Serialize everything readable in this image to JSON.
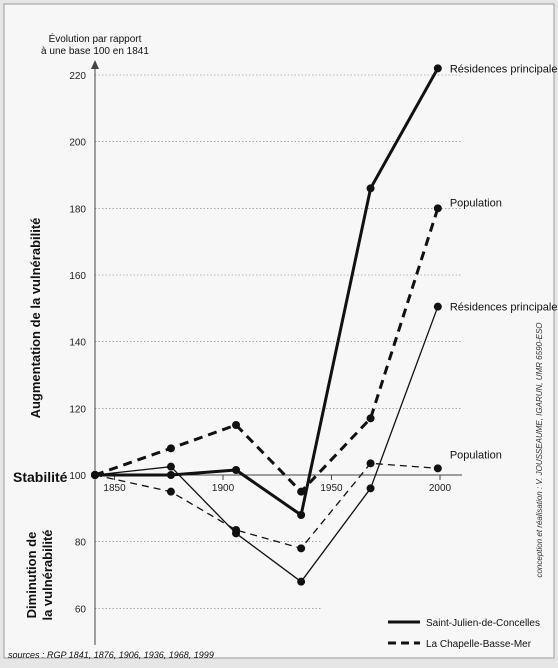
{
  "chart_data": {
    "type": "line",
    "y_axis_title": [
      "Évolution par rapport",
      "à une base 100 en 1841"
    ],
    "x_ticks": [
      1850,
      1900,
      1950,
      2000
    ],
    "y_ticks": [
      60,
      80,
      100,
      120,
      140,
      160,
      180,
      200,
      220
    ],
    "ylim": [
      60,
      230
    ],
    "xlim": [
      1841,
      2000
    ],
    "grid": true,
    "side_labels": {
      "augmentation": "Augmentation de la vulnérabilité",
      "stabilite": "Stabilité",
      "diminution": [
        "Diminution de",
        "la vulnérabilité"
      ]
    },
    "series": [
      {
        "name": "Résidences principales",
        "commune": "Saint-Julien-de-Concelles",
        "line": "solid",
        "weight": "thick",
        "x": [
          1841,
          1876,
          1906,
          1936,
          1968,
          1999
        ],
        "y": [
          100,
          100,
          101.5,
          88,
          186,
          222
        ]
      },
      {
        "name": "Population",
        "commune": "Saint-Julien-de-Concelles",
        "line": "solid",
        "weight": "thin",
        "x": [
          1841,
          1876,
          1906,
          1936,
          1968,
          1999
        ],
        "y": [
          100,
          102.5,
          82.5,
          68,
          96,
          150.5
        ]
      },
      {
        "name": "Résidences principales",
        "commune": "La Chapelle-Basse-Mer",
        "line": "dashed",
        "weight": "thick",
        "x": [
          1841,
          1876,
          1906,
          1936,
          1968,
          1999
        ],
        "y": [
          100,
          108,
          115,
          95,
          117,
          180
        ]
      },
      {
        "name": "Population",
        "commune": "La Chapelle-Basse-Mer",
        "line": "dashed",
        "weight": "thin",
        "x": [
          1841,
          1876,
          1906,
          1936,
          1968,
          1999
        ],
        "y": [
          100,
          95,
          83.5,
          78,
          103.5,
          102
        ]
      }
    ],
    "end_labels": [
      "Résidences principales",
      "Résidences principales",
      "Population",
      "Population"
    ],
    "legend": {
      "placement": "bottom-right",
      "items": [
        {
          "label": "Saint-Julien-de-Concelles",
          "style": "solid"
        },
        {
          "label": "La Chapelle-Basse-Mer",
          "style": "dashed"
        }
      ]
    },
    "credit": "conception et réalisation : V. JOUSSEAUME, IGARUN, UMR 6590-ESO",
    "source": "sources : RGP 1841, 1876, 1906, 1936, 1968, 1999"
  }
}
